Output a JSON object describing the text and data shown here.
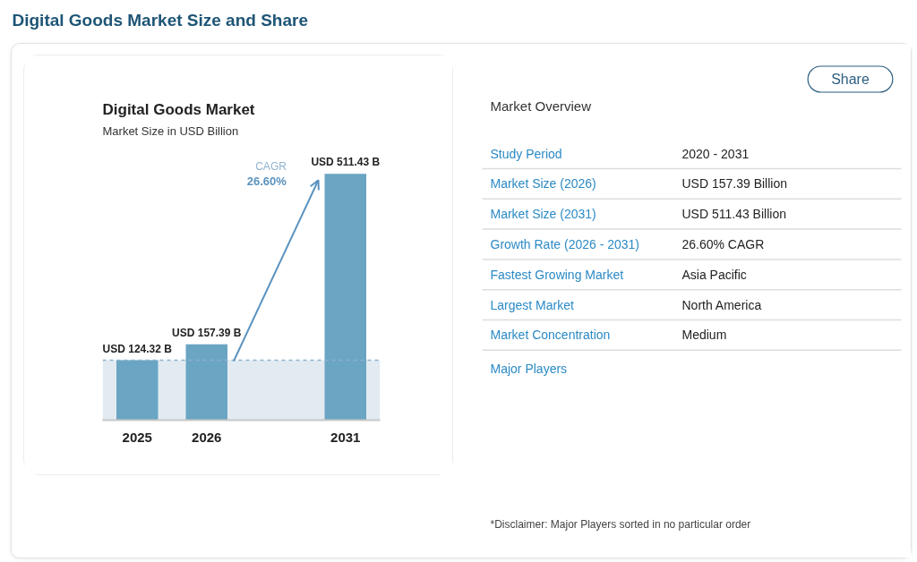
{
  "chart_data": [
    {
      "type": "other",
      "title": "Digital Goods Market Size and Share"
    },
    {
      "type": "bar",
      "title": "Digital Goods Market",
      "subtitle": "Market Size in USD Billion",
      "categories": [
        "2025",
        "2026",
        null,
        "2031"
      ],
      "values": [
        124.32,
        157.39,
        null,
        511.43
      ],
      "color": "#6aa5c3",
      "value_labels": [
        "USD 124.32 B",
        "USD 157.39 B",
        null,
        "USD 511.43 B"
      ],
      "tick_labels": "x",
      "ref_lines": [
        {
          "axis": "y",
          "value": 124.32,
          "color": "#8eb2cc",
          "line_style": "dashed"
        }
      ],
      "bands": [
        {
          "axis": "y",
          "from": 0,
          "to": 124.32,
          "color": "#e2ebf2"
        }
      ],
      "annotations": [
        "CAGR\n26.60%"
      ]
    },
    {
      "type": "other",
      "title": "Market Overview",
      "annotations": [
        "Share",
        "Study Period",
        "2020 - 2031",
        "Market Size (2026)",
        "USD 157.39 Billion",
        "Market Size (2031)",
        "USD 511.43 Billion",
        "Growth Rate (2026 - 2031)",
        "26.60% CAGR",
        "Fastest Growing Market",
        "Asia Pacific",
        "Largest Market",
        "North America",
        "Market Concentration",
        "Medium",
        "Major Players",
        "*Disclaimer: Major Players sorted in no particular order"
      ]
    }
  ]
}
